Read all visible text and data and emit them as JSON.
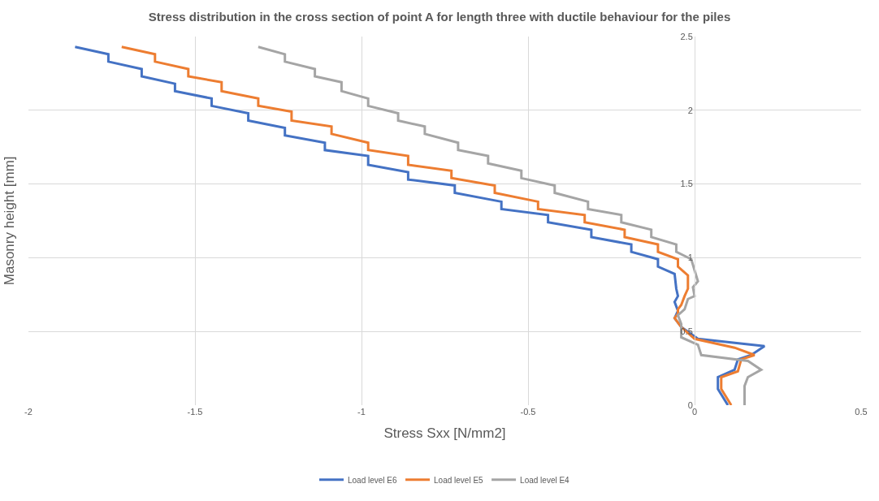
{
  "chart_data": {
    "type": "line",
    "title": "Stress distribution in the cross section of point A for length three with ductile behaviour for the piles",
    "xlabel": "Stress Sxx [N/mm2]",
    "ylabel": "Masonry height [mm]",
    "xlim": [
      -2,
      0.5
    ],
    "xticks": [
      -2,
      -1.5,
      -1,
      -0.5,
      0,
      0.5
    ],
    "ylim": [
      0,
      2.5
    ],
    "yticks": [
      0,
      0.5,
      1,
      1.5,
      2,
      2.5
    ],
    "grid": true,
    "legend": "bottom",
    "marker": "none",
    "line_style": "solid",
    "series": [
      {
        "name": "Load level E6",
        "color": "#4472c4",
        "x": [
          -1.86,
          -1.76,
          -1.76,
          -1.66,
          -1.66,
          -1.56,
          -1.56,
          -1.45,
          -1.45,
          -1.34,
          -1.34,
          -1.23,
          -1.23,
          -1.11,
          -1.11,
          -0.98,
          -0.98,
          -0.86,
          -0.86,
          -0.72,
          -0.72,
          -0.58,
          -0.58,
          -0.44,
          -0.44,
          -0.31,
          -0.31,
          -0.19,
          -0.19,
          -0.11,
          -0.11,
          -0.06,
          -0.055,
          -0.05,
          -0.06,
          -0.05,
          -0.06,
          -0.04,
          0.01,
          0.21,
          0.17,
          0.13,
          0.12,
          0.07,
          0.07,
          0.1
        ],
        "values": [
          2.43,
          2.38,
          2.33,
          2.28,
          2.23,
          2.18,
          2.13,
          2.08,
          2.03,
          1.98,
          1.93,
          1.88,
          1.83,
          1.78,
          1.73,
          1.69,
          1.63,
          1.58,
          1.53,
          1.49,
          1.44,
          1.38,
          1.33,
          1.29,
          1.24,
          1.19,
          1.14,
          1.09,
          1.04,
          0.99,
          0.94,
          0.89,
          0.79,
          0.74,
          0.7,
          0.64,
          0.59,
          0.53,
          0.45,
          0.4,
          0.34,
          0.31,
          0.24,
          0.19,
          0.11,
          0
        ]
      },
      {
        "name": "Load level E5",
        "color": "#ed7d31",
        "x": [
          -1.72,
          -1.62,
          -1.62,
          -1.52,
          -1.52,
          -1.42,
          -1.42,
          -1.31,
          -1.31,
          -1.21,
          -1.21,
          -1.09,
          -1.09,
          -0.98,
          -0.98,
          -0.86,
          -0.86,
          -0.73,
          -0.73,
          -0.6,
          -0.6,
          -0.47,
          -0.47,
          -0.33,
          -0.33,
          -0.21,
          -0.21,
          -0.11,
          -0.11,
          -0.05,
          -0.05,
          -0.02,
          -0.02,
          -0.03,
          -0.04,
          -0.05,
          -0.05,
          -0.06,
          -0.04,
          0,
          0.12,
          0.18,
          0.14,
          0.13,
          0.08,
          0.08,
          0.11
        ],
        "values": [
          2.43,
          2.38,
          2.33,
          2.28,
          2.23,
          2.19,
          2.13,
          2.08,
          2.03,
          1.99,
          1.93,
          1.89,
          1.84,
          1.78,
          1.73,
          1.69,
          1.63,
          1.59,
          1.54,
          1.49,
          1.44,
          1.38,
          1.33,
          1.29,
          1.24,
          1.19,
          1.14,
          1.09,
          1.04,
          0.99,
          0.94,
          0.88,
          0.79,
          0.74,
          0.68,
          0.65,
          0.62,
          0.59,
          0.53,
          0.45,
          0.39,
          0.34,
          0.31,
          0.23,
          0.19,
          0.11,
          0
        ]
      },
      {
        "name": "Load level E4",
        "color": "#a5a5a5",
        "x": [
          -1.31,
          -1.23,
          -1.23,
          -1.14,
          -1.14,
          -1.06,
          -1.06,
          -0.98,
          -0.98,
          -0.89,
          -0.89,
          -0.81,
          -0.81,
          -0.71,
          -0.71,
          -0.62,
          -0.62,
          -0.52,
          -0.52,
          -0.42,
          -0.42,
          -0.32,
          -0.32,
          -0.22,
          -0.22,
          -0.13,
          -0.13,
          -0.055,
          -0.055,
          -0.01,
          0.01,
          -0.005,
          0,
          -0.02,
          -0.03,
          -0.05,
          -0.04,
          -0.04,
          0.01,
          0.02,
          0.16,
          0.2,
          0.16,
          0.15,
          0.15
        ],
        "values": [
          2.43,
          2.38,
          2.33,
          2.28,
          2.23,
          2.19,
          2.13,
          2.08,
          2.03,
          1.98,
          1.93,
          1.89,
          1.84,
          1.78,
          1.73,
          1.69,
          1.64,
          1.59,
          1.54,
          1.49,
          1.44,
          1.38,
          1.33,
          1.29,
          1.24,
          1.19,
          1.14,
          1.09,
          1.04,
          0.99,
          0.84,
          0.8,
          0.74,
          0.72,
          0.65,
          0.61,
          0.55,
          0.46,
          0.41,
          0.34,
          0.3,
          0.24,
          0.19,
          0.13,
          0
        ]
      }
    ]
  }
}
